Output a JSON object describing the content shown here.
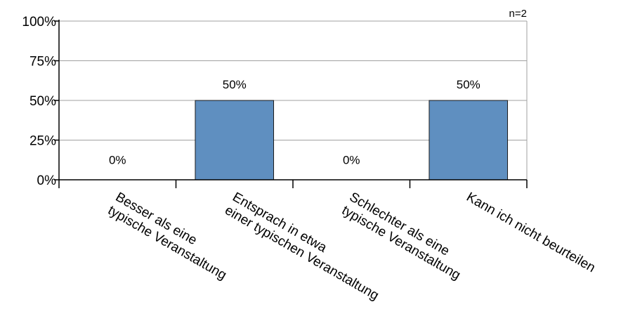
{
  "chart_data": {
    "type": "bar",
    "categories": [
      [
        "Besser als eine",
        "typische Veranstaltung"
      ],
      [
        "Entsprach in etwa",
        "einer typischen Veranstaltung"
      ],
      [
        "Schlechter als eine",
        "typische Veranstaltung"
      ],
      [
        "Kann ich nicht beurteilen"
      ]
    ],
    "values": [
      0,
      50,
      0,
      50
    ],
    "data_labels": [
      "0%",
      "50%",
      "0%",
      "50%"
    ],
    "y_ticks": [
      "0%",
      "25%",
      "50%",
      "75%",
      "100%"
    ],
    "ylim": [
      0,
      100
    ],
    "note": "n=2",
    "grid": true,
    "colors": {
      "bar": "#5f8fc0",
      "bar_edge": "#1a1a1a",
      "grid": "#a0a0a0",
      "axis": "#000000",
      "frame": "#a0a0a0"
    }
  }
}
